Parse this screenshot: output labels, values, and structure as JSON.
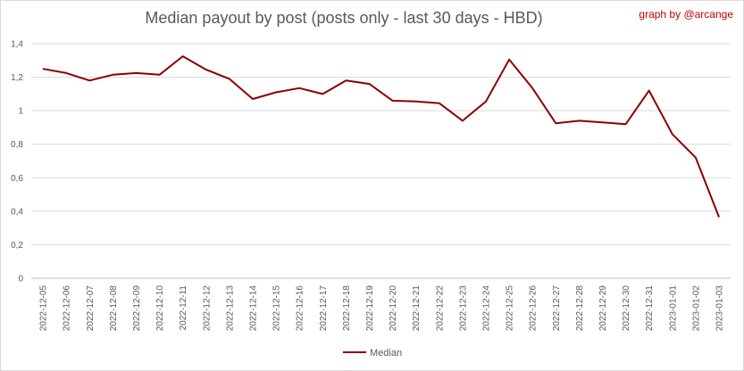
{
  "chart_data": {
    "type": "line",
    "title": "Median payout by post (posts only - last 30 days - HBD)",
    "credit": "graph by @arcange",
    "categories": [
      "2022-12-05",
      "2022-12-06",
      "2022-12-07",
      "2022-12-08",
      "2022-12-09",
      "2022-12-10",
      "2022-12-11",
      "2022-12-12",
      "2022-12-13",
      "2022-12-14",
      "2022-12-15",
      "2022-12-16",
      "2022-12-17",
      "2022-12-18",
      "2022-12-19",
      "2022-12-20",
      "2022-12-21",
      "2022-12-22",
      "2022-12-23",
      "2022-12-24",
      "2022-12-25",
      "2022-12-26",
      "2022-12-27",
      "2022-12-28",
      "2022-12-29",
      "2022-12-30",
      "2022-12-31",
      "2023-01-01",
      "2023-01-02",
      "2023-01-03"
    ],
    "series": [
      {
        "name": "Median",
        "color": "#8b0000",
        "values": [
          1.25,
          1.225,
          1.18,
          1.215,
          1.225,
          1.215,
          1.325,
          1.245,
          1.19,
          1.07,
          1.11,
          1.135,
          1.1,
          1.18,
          1.16,
          1.06,
          1.055,
          1.045,
          0.94,
          1.055,
          1.305,
          1.135,
          0.925,
          0.94,
          0.93,
          0.92,
          1.12,
          0.86,
          0.72,
          0.365
        ]
      }
    ],
    "y_ticks": [
      "0",
      "0,2",
      "0,4",
      "0,6",
      "0,8",
      "1",
      "1,2",
      "1,4"
    ],
    "ylim": [
      0,
      1.4
    ],
    "grid": true,
    "legend": "bottom"
  }
}
